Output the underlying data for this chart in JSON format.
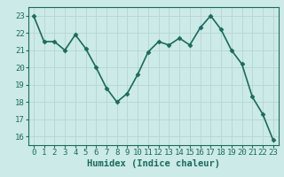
{
  "x": [
    0,
    1,
    2,
    3,
    4,
    5,
    6,
    7,
    8,
    9,
    10,
    11,
    12,
    13,
    14,
    15,
    16,
    17,
    18,
    19,
    20,
    21,
    22,
    23
  ],
  "y": [
    23.0,
    21.5,
    21.5,
    21.0,
    21.9,
    21.1,
    20.0,
    18.8,
    18.0,
    18.5,
    19.6,
    20.9,
    21.5,
    21.3,
    21.7,
    21.3,
    22.3,
    23.0,
    22.2,
    21.0,
    20.2,
    18.3,
    17.3,
    15.8
  ],
  "line_color": "#1a6b5c",
  "marker": "D",
  "marker_size": 2.5,
  "bg_color": "#cceae8",
  "grid_color": "#b8d8d6",
  "axes_color": "#1a6b5c",
  "xlabel": "Humidex (Indice chaleur)",
  "ylim": [
    15.5,
    23.5
  ],
  "xlim": [
    -0.5,
    23.5
  ],
  "yticks": [
    16,
    17,
    18,
    19,
    20,
    21,
    22,
    23
  ],
  "xticks": [
    0,
    1,
    2,
    3,
    4,
    5,
    6,
    7,
    8,
    9,
    10,
    11,
    12,
    13,
    14,
    15,
    16,
    17,
    18,
    19,
    20,
    21,
    22,
    23
  ],
  "tick_label_color": "#1a6b5c",
  "xlabel_fontsize": 7.5,
  "tick_fontsize": 6.5,
  "line_width": 1.2
}
